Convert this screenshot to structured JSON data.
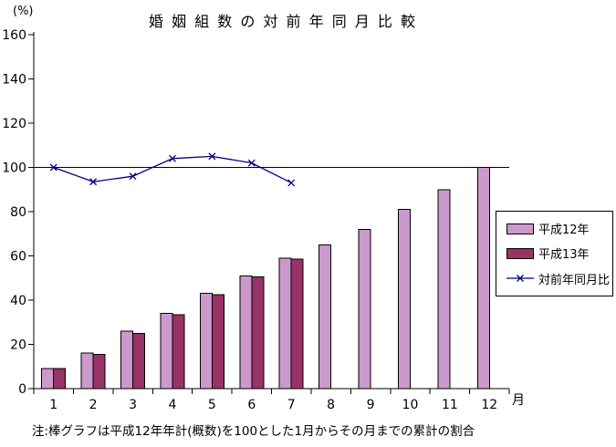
{
  "title_display": "婚 姻 組 数 の 対 前 年 同 月 比 較",
  "note": "注:棒グラフは平成12年年計(概数)を100とした1月からその月までの累計の割合",
  "legend": {
    "items": [
      {
        "label": "平成12年",
        "type": "bar",
        "color": "#CC99CC"
      },
      {
        "label": "平成13年",
        "type": "bar",
        "color": "#993366"
      },
      {
        "label": "対前年同月比",
        "type": "line",
        "color": "#000080"
      }
    ]
  },
  "chart_data": {
    "type": "bar",
    "title": "婚姻組数の対前年同月比較",
    "categories": [
      "1",
      "2",
      "3",
      "4",
      "5",
      "6",
      "7",
      "8",
      "9",
      "10",
      "11",
      "12"
    ],
    "series": [
      {
        "name": "平成12年",
        "type": "bar",
        "color": "#CC99CC",
        "values": [
          9,
          16,
          26,
          34,
          43,
          51,
          59,
          65,
          72,
          81,
          90,
          100
        ]
      },
      {
        "name": "平成13年",
        "type": "bar",
        "color": "#993366",
        "values": [
          9,
          15.5,
          25,
          33.5,
          42.5,
          50.5,
          58.5,
          null,
          null,
          null,
          null,
          null
        ]
      },
      {
        "name": "対前年同月比",
        "type": "line",
        "color": "#000080",
        "marker": "x",
        "values": [
          100,
          93.5,
          96,
          104,
          105,
          102,
          93,
          null,
          null,
          null,
          null,
          null
        ]
      }
    ],
    "xlabel": "月",
    "ylabel": "(%)",
    "ylim": [
      0,
      160
    ],
    "ytick_interval": 20,
    "reference_line": 100,
    "grid": false,
    "legend_position": "right-middle"
  }
}
